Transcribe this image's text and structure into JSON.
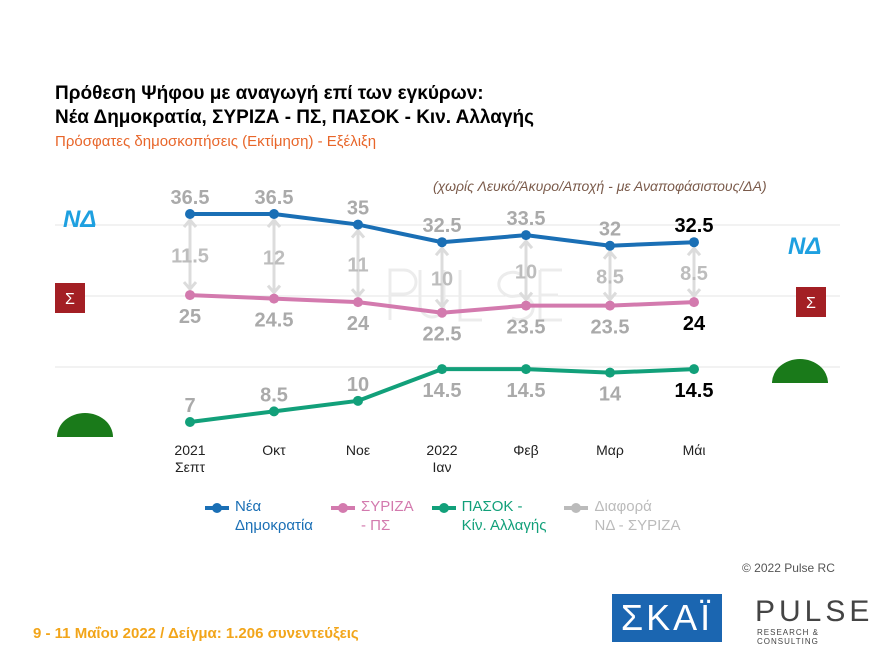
{
  "title_line1": "Πρόθεση Ψήφου με αναγωγή επί των εγκύρων:",
  "title_line2": "Νέα Δημοκρατία, ΣΥΡΙΖΑ - ΠΣ, ΠΑΣΟΚ - Κιν. Αλλαγής",
  "subtitle": "Πρόσφατες δημοσκοπήσεις (Εκτίμηση) - Εξέλιξη",
  "note": "(χωρίς Λευκό/Άκυρο/Αποχή - με Αναποφάσιστους/ΔΑ)",
  "chart_data": {
    "type": "line",
    "categories": [
      [
        "2021",
        "Σεπτ"
      ],
      [
        "Οκτ"
      ],
      [
        "Νοε"
      ],
      [
        "2022",
        "Ιαν"
      ],
      [
        "Φεβ"
      ],
      [
        "Μαρ"
      ],
      [
        "Μάι"
      ]
    ],
    "series": [
      {
        "name": "Νέα Δημοκρατία",
        "color": "#1a6fb5",
        "values": [
          36.5,
          36.5,
          35,
          32.5,
          33.5,
          32,
          32.5
        ]
      },
      {
        "name": "ΣΥΡΙΖΑ - ΠΣ",
        "color": "#d37aae",
        "values": [
          25,
          24.5,
          24,
          22.5,
          23.5,
          23.5,
          24
        ]
      },
      {
        "name": "ΠΑΣΟΚ - Κίν. Αλλαγής",
        "color": "#12a07a",
        "values": [
          7,
          8.5,
          10,
          14.5,
          14.5,
          14,
          14.5
        ]
      },
      {
        "name": "Διαφορά ΝΔ - ΣΥΡΙΖΑ",
        "color": "#bbbbbb",
        "values": [
          11.5,
          12,
          11,
          10,
          10,
          8.5,
          8.5
        ]
      }
    ],
    "legend_labels": [
      [
        "Νέα",
        "Δημοκρατία"
      ],
      [
        "ΣΥΡΙΖΑ",
        "- ΠΣ"
      ],
      [
        "ΠΑΣΟΚ -",
        "Κίν. Αλλαγής"
      ],
      [
        "Διαφορά",
        "ΝΔ - ΣΥΡΙΖΑ"
      ]
    ],
    "legend_placement": "bottom"
  },
  "logos": {
    "nd": "ΝΔ",
    "syriza": "Σ",
    "skai": "ΣΚΑΪ",
    "pulse": "PULSE",
    "pulse_sub": "RESEARCH & CONSULTING"
  },
  "copyright": "© 2022 Pulse RC",
  "footer": "9 - 11  Μαΐου  2022  /  Δείγμα:  1.206 συνεντεύξεις"
}
